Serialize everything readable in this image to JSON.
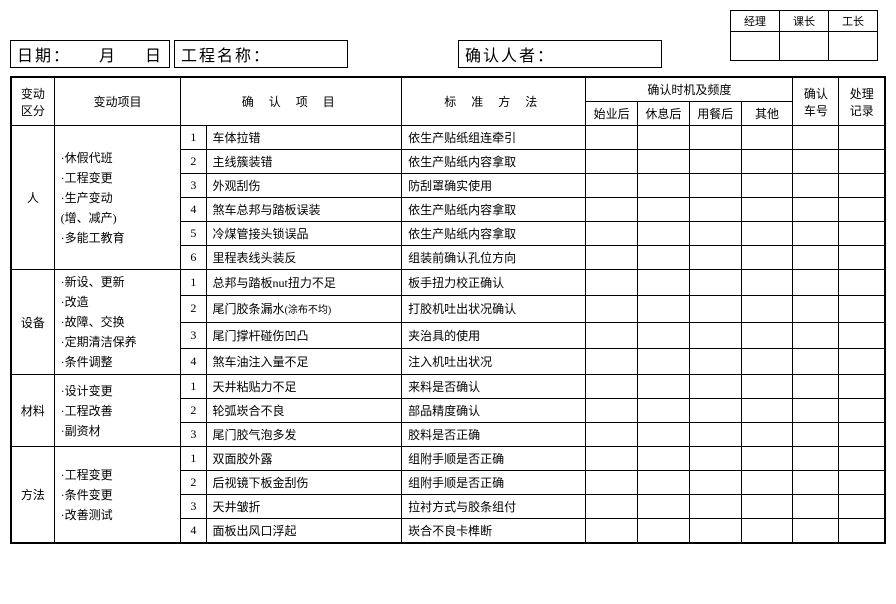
{
  "signoff": {
    "c1": "经理",
    "c2": "课长",
    "c3": "工长"
  },
  "header": {
    "date_label": "日期：",
    "month_unit": "月",
    "day_unit": "日",
    "project_label": "工程名称：",
    "confirmer_label": "确认人者："
  },
  "columns": {
    "cat": "变动\n区分",
    "project": "变动项目",
    "confirm_item": "确 认 项 目",
    "method": "标 准 方 法",
    "timing_group": "确认时机及频度",
    "t1": "始业后",
    "t2": "休息后",
    "t3": "用餐后",
    "t4": "其他",
    "car_no": "确认\n车号",
    "record": "处理\n记录"
  },
  "groups": [
    {
      "cat": "人",
      "project_lines": [
        "·休假代班",
        "·工程变更",
        "·生产变动",
        "  (增、减产)",
        "·多能工教育"
      ],
      "rows": [
        {
          "n": "1",
          "item": "车体拉错",
          "method": "依生产贴纸组连牵引"
        },
        {
          "n": "2",
          "item": "主线簇装错",
          "method": "依生产贴纸内容拿取"
        },
        {
          "n": "3",
          "item": "外观刮伤",
          "method": "防刮罩确实使用"
        },
        {
          "n": "4",
          "item": "煞车总邦与踏板误装",
          "method": "依生产贴纸内容拿取"
        },
        {
          "n": "5",
          "item": "冷煤管接头锁误品",
          "method": "依生产贴纸内容拿取"
        },
        {
          "n": "6",
          "item": "里程表线头装反",
          "method": "组装前确认孔位方向"
        }
      ]
    },
    {
      "cat": "设备",
      "project_lines": [
        "·新设、更新",
        "·改造",
        "·故障、交换",
        "·定期清洁保养",
        "·条件调整"
      ],
      "rows": [
        {
          "n": "1",
          "item": "总邦与踏板nut扭力不足",
          "method": "板手扭力校正确认"
        },
        {
          "n": "2",
          "item": "尾门胶条漏水",
          "item_note": "(涂布不均)",
          "method": "打胶机吐出状况确认"
        },
        {
          "n": "3",
          "item": "尾门撑杆碰伤凹凸",
          "method": "夹治具的使用"
        },
        {
          "n": "4",
          "item": "煞车油注入量不足",
          "method": "注入机吐出状况"
        }
      ]
    },
    {
      "cat": "材料",
      "project_lines": [
        "·设计变更",
        "·工程改善",
        "·副资材"
      ],
      "rows": [
        {
          "n": "1",
          "item": "天井粘贴力不足",
          "method": "来料是否确认"
        },
        {
          "n": "2",
          "item": "轮弧崁合不良",
          "method": "部品精度确认"
        },
        {
          "n": "3",
          "item": "尾门胶气泡多发",
          "method": "胶料是否正确"
        }
      ]
    },
    {
      "cat": "方法",
      "project_lines": [
        "·工程变更",
        "·条件变更",
        "·改善测试"
      ],
      "rows": [
        {
          "n": "1",
          "item": "双面胶外露",
          "method": "组附手顺是否正确"
        },
        {
          "n": "2",
          "item": "后视镜下板金刮伤",
          "method": "组附手顺是否正确"
        },
        {
          "n": "3",
          "item": "天井皱折",
          "method": "拉衬方式与胶条组付"
        },
        {
          "n": "4",
          "item": "面板出风口浮起",
          "method": "崁合不良卡榫断"
        }
      ]
    }
  ]
}
